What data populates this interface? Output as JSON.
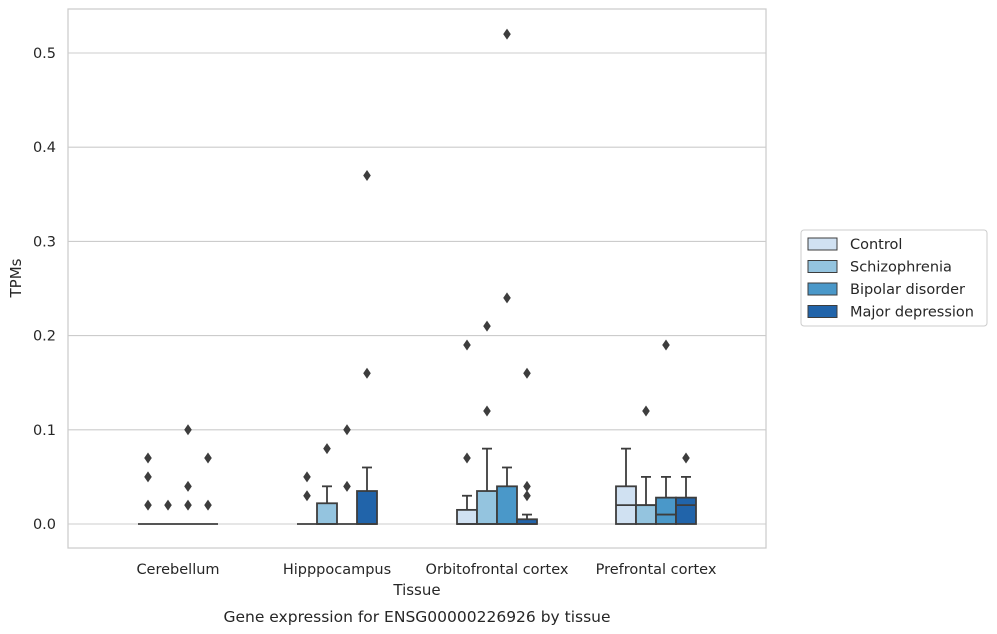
{
  "chart_data": {
    "type": "box",
    "title": "",
    "caption": "Gene expression for ENSG00000226926 by tissue",
    "xlabel": "Tissue",
    "ylabel": "TPMs",
    "ylim": [
      -0.025,
      0.548
    ],
    "yticks": [
      0.0,
      0.1,
      0.2,
      0.3,
      0.4,
      0.5
    ],
    "ytick_labels": [
      "0.0",
      "0.1",
      "0.2",
      "0.3",
      "0.4",
      "0.5"
    ],
    "grid": "horizontal",
    "legend_position": "right",
    "categories": [
      "Cerebellum",
      "Hipppocampus",
      "Orbitofrontal cortex",
      "Prefrontal cortex"
    ],
    "series": [
      {
        "name": "Control",
        "color": "#d0e1f2",
        "boxes": [
          {
            "q1": 0.0,
            "median": 0.0,
            "q3": 0.0,
            "whislo": 0.0,
            "whishi": 0.0,
            "fliers": [
              0.02,
              0.07,
              0.05
            ]
          },
          {
            "q1": 0.0,
            "median": 0.0,
            "q3": 0.0,
            "whislo": 0.0,
            "whishi": 0.0,
            "fliers": [
              0.05,
              0.03
            ]
          },
          {
            "q1": 0.0,
            "median": 0.0,
            "q3": 0.015,
            "whislo": 0.0,
            "whishi": 0.03,
            "fliers": [
              0.19,
              0.07
            ]
          },
          {
            "q1": 0.0,
            "median": 0.02,
            "q3": 0.04,
            "whislo": 0.0,
            "whishi": 0.08,
            "fliers": []
          }
        ]
      },
      {
        "name": "Schizophrenia",
        "color": "#94c4df",
        "boxes": [
          {
            "q1": 0.0,
            "median": 0.0,
            "q3": 0.0,
            "whislo": 0.0,
            "whishi": 0.0,
            "fliers": [
              0.02
            ]
          },
          {
            "q1": 0.0,
            "median": 0.0,
            "q3": 0.022,
            "whislo": 0.0,
            "whishi": 0.04,
            "fliers": [
              0.08
            ]
          },
          {
            "q1": 0.0,
            "median": 0.0,
            "q3": 0.035,
            "whislo": 0.0,
            "whishi": 0.08,
            "fliers": [
              0.21,
              0.12
            ]
          },
          {
            "q1": 0.0,
            "median": 0.02,
            "q3": 0.02,
            "whislo": 0.0,
            "whishi": 0.05,
            "fliers": [
              0.12
            ]
          }
        ]
      },
      {
        "name": "Bipolar disorder",
        "color": "#4a98c9",
        "boxes": [
          {
            "q1": 0.0,
            "median": 0.0,
            "q3": 0.0,
            "whislo": 0.0,
            "whishi": 0.0,
            "fliers": [
              0.1,
              0.04,
              0.02
            ]
          },
          {
            "q1": 0.0,
            "median": 0.0,
            "q3": 0.0,
            "whislo": 0.0,
            "whishi": 0.0,
            "fliers": [
              0.1,
              0.04
            ]
          },
          {
            "q1": 0.0,
            "median": 0.0,
            "q3": 0.04,
            "whislo": 0.0,
            "whishi": 0.06,
            "fliers": [
              0.52,
              0.24
            ]
          },
          {
            "q1": 0.0,
            "median": 0.01,
            "q3": 0.028,
            "whislo": 0.0,
            "whishi": 0.05,
            "fliers": [
              0.19
            ]
          }
        ]
      },
      {
        "name": "Major depression",
        "color": "#2164aa",
        "boxes": [
          {
            "q1": 0.0,
            "median": 0.0,
            "q3": 0.0,
            "whislo": 0.0,
            "whishi": 0.0,
            "fliers": [
              0.07,
              0.02
            ]
          },
          {
            "q1": 0.0,
            "median": 0.0,
            "q3": 0.035,
            "whislo": 0.0,
            "whishi": 0.06,
            "fliers": [
              0.37,
              0.16
            ]
          },
          {
            "q1": 0.0,
            "median": 0.0,
            "q3": 0.005,
            "whislo": 0.0,
            "whishi": 0.01,
            "fliers": [
              0.16,
              0.04,
              0.03
            ]
          },
          {
            "q1": 0.0,
            "median": 0.02,
            "q3": 0.028,
            "whislo": 0.0,
            "whishi": 0.05,
            "fliers": [
              0.07
            ]
          }
        ]
      }
    ]
  }
}
